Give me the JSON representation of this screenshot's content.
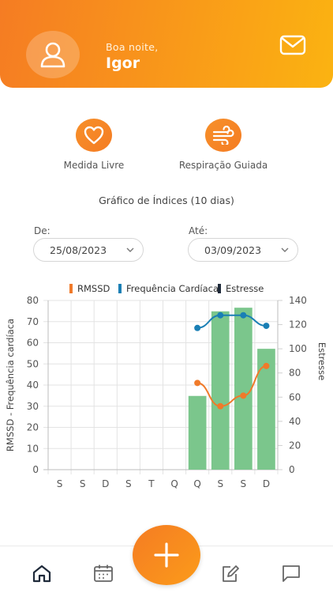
{
  "header": {
    "greeting": "Boa noite,",
    "user_name": "Igor",
    "avatar_icon": "user-icon",
    "mail_icon": "mail-icon"
  },
  "actions": [
    {
      "label": "Medida Livre",
      "icon": "heart-icon"
    },
    {
      "label": "Respiração Guiada",
      "icon": "wind-icon"
    }
  ],
  "chart_section": {
    "title": "Gráfico de Índices (10 dias)",
    "from_label": "De:",
    "from_value": "25/08/2023",
    "to_label": "Até:",
    "to_value": "03/09/2023"
  },
  "chart_data": {
    "type": "bar",
    "categories": [
      "S",
      "S",
      "D",
      "S",
      "T",
      "Q",
      "Q",
      "S",
      "S",
      "D"
    ],
    "left_axis": {
      "label": "RMSSD - Frequência cardíaca",
      "ticks": [
        0,
        10,
        20,
        30,
        40,
        50,
        60,
        70,
        80
      ],
      "range": [
        0,
        80
      ]
    },
    "right_axis": {
      "label": "Estresse",
      "ticks": [
        0,
        20,
        40,
        60,
        80,
        100,
        120,
        140
      ],
      "range": [
        0,
        140
      ]
    },
    "legend": [
      {
        "name": "RMSSD",
        "color": "#f07a2a"
      },
      {
        "name": "Frequência Cardíaca",
        "color": "#1a7fb5"
      },
      {
        "name": "Estresse",
        "color": "#1f2a3a"
      }
    ],
    "series": [
      {
        "name": "Estresse",
        "kind": "bar",
        "axis": "right",
        "color": "#7bc68c",
        "values": [
          null,
          null,
          null,
          null,
          null,
          null,
          61,
          131,
          134,
          100
        ]
      },
      {
        "name": "RMSSD",
        "kind": "line",
        "axis": "left",
        "color": "#f07a2a",
        "values": [
          null,
          null,
          null,
          null,
          null,
          null,
          41,
          30,
          35,
          49
        ]
      },
      {
        "name": "Frequência Cardíaca",
        "kind": "line",
        "axis": "left",
        "color": "#1a7fb5",
        "values": [
          null,
          null,
          null,
          null,
          null,
          null,
          67,
          73,
          73,
          68
        ]
      }
    ],
    "grid": true,
    "legend_position": "top"
  },
  "bottom_nav": {
    "items": [
      {
        "icon": "home-icon"
      },
      {
        "icon": "calendar-icon"
      },
      {
        "icon": "edit-icon"
      },
      {
        "icon": "chat-icon"
      }
    ],
    "fab_icon": "plus-icon"
  }
}
